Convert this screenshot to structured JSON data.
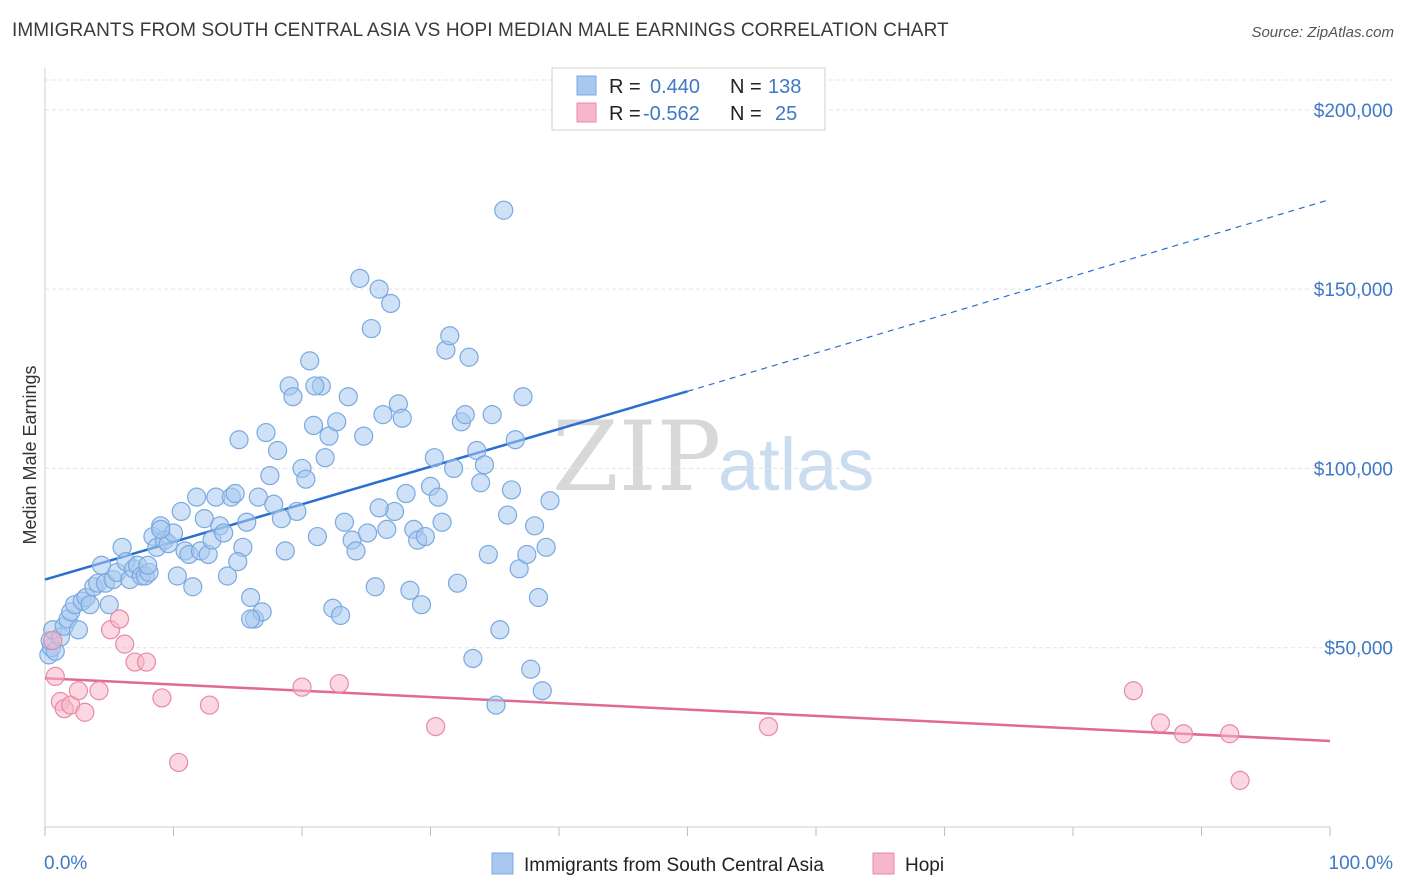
{
  "header": {
    "title": "IMMIGRANTS FROM SOUTH CENTRAL ASIA VS HOPI MEDIAN MALE EARNINGS CORRELATION CHART",
    "source": "Source: ZipAtlas.com"
  },
  "watermark": {
    "zip": "ZIP",
    "atlas": "atlas"
  },
  "legend_top": {
    "r_label": "R =",
    "n_label": "N =",
    "rows": [
      {
        "r": "0.440",
        "n": "138",
        "color": "#a8c8f0"
      },
      {
        "r": "-0.562",
        "n": "25",
        "color": "#f5b7c9"
      }
    ]
  },
  "chart_data": {
    "type": "scatter",
    "xlabel": "",
    "ylabel": "Median Male Earnings",
    "xlim": [
      0,
      100
    ],
    "ylim": [
      0,
      210000
    ],
    "x_tick_labels": [
      "0.0%",
      "100.0%"
    ],
    "y_ticks": [
      {
        "value": 50000,
        "label": "$50,000"
      },
      {
        "value": 100000,
        "label": "$100,000"
      },
      {
        "value": 150000,
        "label": "$150,000"
      },
      {
        "value": 200000,
        "label": "$200,000"
      }
    ],
    "grid": true,
    "legend_position": "top-center",
    "series": [
      {
        "name": "Immigrants from South Central Asia",
        "color": "#7aa9e0",
        "fill": "#a8c8f0",
        "trend": {
          "x0": 0,
          "y0": 69000,
          "x1": 50,
          "y1": 121500,
          "dash_to_x": 100,
          "dash_to_y": 175000,
          "color": "#2a6fd0"
        },
        "points": [
          [
            0.3,
            48000
          ],
          [
            0.5,
            50000
          ],
          [
            0.4,
            52000
          ],
          [
            0.6,
            55000
          ],
          [
            0.8,
            49000
          ],
          [
            1.2,
            53000
          ],
          [
            1.5,
            56000
          ],
          [
            1.8,
            58000
          ],
          [
            2.0,
            60000
          ],
          [
            2.3,
            62000
          ],
          [
            2.6,
            55000
          ],
          [
            2.9,
            63000
          ],
          [
            3.2,
            64000
          ],
          [
            3.5,
            62000
          ],
          [
            3.8,
            67000
          ],
          [
            4.1,
            68000
          ],
          [
            4.4,
            73000
          ],
          [
            4.7,
            68000
          ],
          [
            5.0,
            62000
          ],
          [
            5.3,
            69000
          ],
          [
            5.6,
            71000
          ],
          [
            6.0,
            78000
          ],
          [
            6.3,
            74000
          ],
          [
            6.6,
            69000
          ],
          [
            6.9,
            72000
          ],
          [
            7.2,
            73000
          ],
          [
            7.5,
            70000
          ],
          [
            7.8,
            70000
          ],
          [
            8.1,
            71000
          ],
          [
            8.4,
            81000
          ],
          [
            8.7,
            78000
          ],
          [
            9.0,
            84000
          ],
          [
            9.3,
            80000
          ],
          [
            9.6,
            79000
          ],
          [
            10.0,
            82000
          ],
          [
            10.3,
            70000
          ],
          [
            10.6,
            88000
          ],
          [
            10.9,
            77000
          ],
          [
            11.2,
            76000
          ],
          [
            11.5,
            67000
          ],
          [
            11.8,
            92000
          ],
          [
            12.1,
            77000
          ],
          [
            12.4,
            86000
          ],
          [
            12.7,
            76000
          ],
          [
            13.0,
            80000
          ],
          [
            13.3,
            92000
          ],
          [
            13.6,
            84000
          ],
          [
            13.9,
            82000
          ],
          [
            14.2,
            70000
          ],
          [
            14.5,
            92000
          ],
          [
            14.8,
            93000
          ],
          [
            15.1,
            108000
          ],
          [
            15.4,
            78000
          ],
          [
            15.7,
            85000
          ],
          [
            16.0,
            64000
          ],
          [
            16.3,
            58000
          ],
          [
            16.6,
            92000
          ],
          [
            16.9,
            60000
          ],
          [
            17.2,
            110000
          ],
          [
            17.5,
            98000
          ],
          [
            17.8,
            90000
          ],
          [
            18.1,
            105000
          ],
          [
            18.4,
            86000
          ],
          [
            18.7,
            77000
          ],
          [
            19.0,
            123000
          ],
          [
            19.3,
            120000
          ],
          [
            19.6,
            88000
          ],
          [
            20.0,
            100000
          ],
          [
            20.3,
            97000
          ],
          [
            20.6,
            130000
          ],
          [
            20.9,
            112000
          ],
          [
            21.2,
            81000
          ],
          [
            21.5,
            123000
          ],
          [
            21.8,
            103000
          ],
          [
            22.1,
            109000
          ],
          [
            22.4,
            61000
          ],
          [
            22.7,
            113000
          ],
          [
            23.0,
            59000
          ],
          [
            23.3,
            85000
          ],
          [
            23.6,
            120000
          ],
          [
            23.9,
            80000
          ],
          [
            24.2,
            77000
          ],
          [
            24.5,
            153000
          ],
          [
            24.8,
            109000
          ],
          [
            25.1,
            82000
          ],
          [
            25.4,
            139000
          ],
          [
            25.7,
            67000
          ],
          [
            26.0,
            150000
          ],
          [
            26.3,
            115000
          ],
          [
            26.6,
            83000
          ],
          [
            26.9,
            146000
          ],
          [
            27.2,
            88000
          ],
          [
            27.5,
            118000
          ],
          [
            27.8,
            114000
          ],
          [
            28.1,
            93000
          ],
          [
            28.4,
            66000
          ],
          [
            28.7,
            83000
          ],
          [
            29.0,
            80000
          ],
          [
            29.3,
            62000
          ],
          [
            29.6,
            81000
          ],
          [
            30.0,
            95000
          ],
          [
            30.3,
            103000
          ],
          [
            30.6,
            92000
          ],
          [
            30.9,
            85000
          ],
          [
            31.2,
            133000
          ],
          [
            31.5,
            137000
          ],
          [
            31.8,
            100000
          ],
          [
            32.1,
            68000
          ],
          [
            32.4,
            113000
          ],
          [
            32.7,
            115000
          ],
          [
            33.0,
            131000
          ],
          [
            33.3,
            47000
          ],
          [
            33.6,
            105000
          ],
          [
            33.9,
            96000
          ],
          [
            34.2,
            101000
          ],
          [
            34.5,
            76000
          ],
          [
            34.8,
            115000
          ],
          [
            35.1,
            34000
          ],
          [
            35.4,
            55000
          ],
          [
            35.7,
            172000
          ],
          [
            36.0,
            87000
          ],
          [
            36.3,
            94000
          ],
          [
            36.6,
            108000
          ],
          [
            36.9,
            72000
          ],
          [
            37.2,
            120000
          ],
          [
            37.5,
            76000
          ],
          [
            37.8,
            44000
          ],
          [
            38.1,
            84000
          ],
          [
            38.4,
            64000
          ],
          [
            38.7,
            38000
          ],
          [
            39.0,
            78000
          ],
          [
            39.3,
            91000
          ],
          [
            9.0,
            83000
          ],
          [
            8.0,
            73000
          ],
          [
            16.0,
            58000
          ],
          [
            26.0,
            89000
          ],
          [
            21.0,
            123000
          ],
          [
            15.0,
            74000
          ]
        ]
      },
      {
        "name": "Hopi",
        "color": "#e88aa8",
        "fill": "#f5b7c9",
        "trend": {
          "x0": 0,
          "y0": 41500,
          "x1": 100,
          "y1": 24000,
          "color": "#e06a90"
        },
        "points": [
          [
            0.6,
            52000
          ],
          [
            0.8,
            42000
          ],
          [
            1.2,
            35000
          ],
          [
            1.5,
            33000
          ],
          [
            2.0,
            34000
          ],
          [
            2.6,
            38000
          ],
          [
            3.1,
            32000
          ],
          [
            4.2,
            38000
          ],
          [
            5.1,
            55000
          ],
          [
            5.8,
            58000
          ],
          [
            6.2,
            51000
          ],
          [
            7.0,
            46000
          ],
          [
            7.9,
            46000
          ],
          [
            9.1,
            36000
          ],
          [
            10.4,
            18000
          ],
          [
            12.8,
            34000
          ],
          [
            20.0,
            39000
          ],
          [
            22.9,
            40000
          ],
          [
            30.4,
            28000
          ],
          [
            56.3,
            28000
          ],
          [
            84.7,
            38000
          ],
          [
            86.8,
            29000
          ],
          [
            88.6,
            26000
          ],
          [
            92.2,
            26000
          ],
          [
            93.0,
            13000
          ]
        ]
      }
    ]
  },
  "legend_bottom": {
    "items": [
      {
        "label": "Immigrants from South Central Asia",
        "color": "#a8c8f0",
        "border": "#7aa9e0"
      },
      {
        "label": "Hopi",
        "color": "#f5b7c9",
        "border": "#e88aa8"
      }
    ]
  }
}
